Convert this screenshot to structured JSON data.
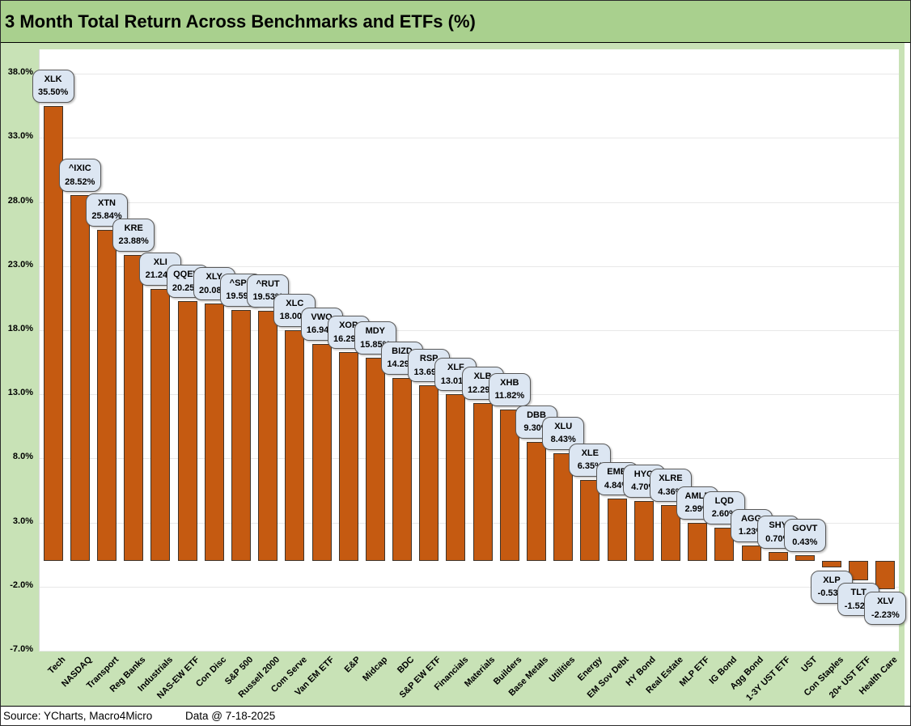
{
  "footer": {
    "source": "Source: YCharts, Macro4Micro",
    "data_date": "Data @ 7-18-2025"
  },
  "colors": {
    "title_bar_bg": "#A9D08E",
    "chart_bg": "#C8E2B6",
    "plot_bg": "#FFFFFF",
    "gridline": "#E8E8E8",
    "bar_fill": "#C55A11",
    "bar_border": "#3E342A",
    "callout_bg": "#DCE6F2",
    "callout_border": "#595959"
  },
  "chart_data": {
    "type": "bar",
    "title": "3 Month Total Return Across Benchmarks and ETFs (%)",
    "xlabel": "",
    "ylabel": "",
    "ylim": [
      -7,
      39.9
    ],
    "grid": true,
    "legend": false,
    "yticks": [
      38,
      33,
      28,
      23,
      18,
      13,
      8,
      3,
      -2,
      -7
    ],
    "ytick_labels": [
      "38.0%",
      "33.0%",
      "28.0%",
      "23.0%",
      "18.0%",
      "13.0%",
      "8.0%",
      "3.0%",
      "-2.0%",
      "-7.0%"
    ],
    "categories": [
      "Tech",
      "NASDAQ",
      "Transport",
      "Reg Banks",
      "Industrials",
      "NAS-EW ETF",
      "Con Disc",
      "S&P 500",
      "Russell 2000",
      "Com Serve",
      "Van EM ETF",
      "E&P",
      "Midcap",
      "BDC",
      "S&P EW ETF",
      "Financials",
      "Materials",
      "Builders",
      "Base Metals",
      "Utilities",
      "Energy",
      "EM Sov Debt",
      "HY Bond",
      "Real Estate",
      "MLP ETF",
      "IG Bond",
      "Agg Bond",
      "1-3Y UST ETF",
      "UST",
      "Con Staples",
      "20+ UST ETF",
      "Health Care"
    ],
    "tickers": [
      "XLK",
      "^IXIC",
      "XTN",
      "KRE",
      "XLI",
      "QQEW",
      "XLY",
      "^SPX",
      "^RUT",
      "XLC",
      "VWO",
      "XOP",
      "MDY",
      "BIZD",
      "RSP",
      "XLF",
      "XLB",
      "XHB",
      "DBB",
      "XLU",
      "XLE",
      "EMB",
      "HYG",
      "XLRE",
      "AMLP",
      "LQD",
      "AGG",
      "SHY",
      "GOVT",
      "XLP",
      "TLT",
      "XLV"
    ],
    "values": [
      35.5,
      28.52,
      25.84,
      23.88,
      21.24,
      20.25,
      20.08,
      19.59,
      19.53,
      18.0,
      16.94,
      16.29,
      15.85,
      14.29,
      13.69,
      13.01,
      12.29,
      11.82,
      9.3,
      8.43,
      6.35,
      4.84,
      4.7,
      4.36,
      2.99,
      2.6,
      1.23,
      0.7,
      0.43,
      -0.53,
      -1.52,
      -2.23
    ],
    "value_labels": [
      "35.50%",
      "28.52%",
      "25.84%",
      "23.88%",
      "21.24%",
      "20.25%",
      "20.08%",
      "19.59%",
      "19.53%",
      "18.00%",
      "16.94%",
      "16.29%",
      "15.85%",
      "14.29%",
      "13.69%",
      "13.01%",
      "12.29%",
      "11.82%",
      "9.30%",
      "8.43%",
      "6.35%",
      "4.84%",
      "4.70%",
      "4.36%",
      "2.99%",
      "2.60%",
      "1.23%",
      "0.70%",
      "0.43%",
      "-0.53%",
      "-1.52%",
      "-2.23%"
    ]
  }
}
